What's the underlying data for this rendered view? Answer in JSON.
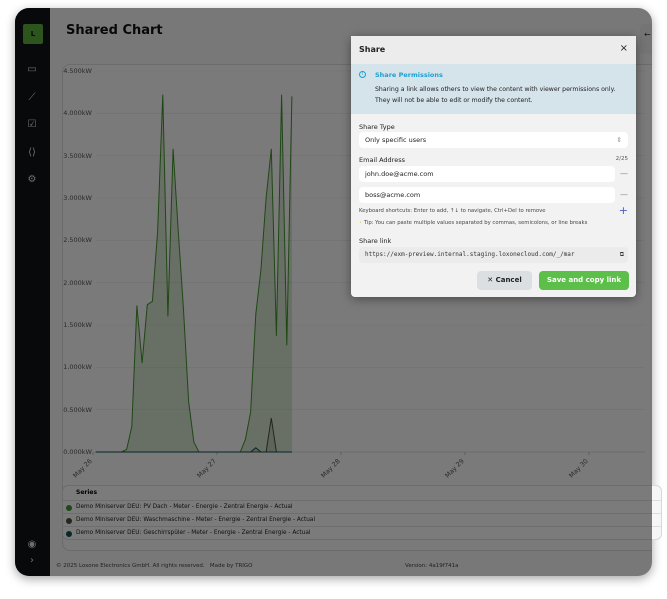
{
  "app": {
    "logo": "L",
    "title": "Shared Chart",
    "right_panel_icon": "arrow-left-icon",
    "right_panel_glyph": "←"
  },
  "sidebar": {
    "items": [
      {
        "icon": "dashboard-card-icon"
      },
      {
        "icon": "line-chart-icon"
      },
      {
        "icon": "checklist-icon"
      },
      {
        "icon": "code-file-icon"
      },
      {
        "icon": "settings-gear-icon"
      }
    ],
    "bottom": [
      {
        "icon": "user-circle-icon"
      },
      {
        "icon": "chevron-right-icon"
      }
    ]
  },
  "chart_data": {
    "type": "area",
    "ylim": [
      0,
      4.5
    ],
    "yticks": [
      "0.000kW",
      "0.500kW",
      "1.000kW",
      "1.500kW",
      "2.000kW",
      "2.500kW",
      "3.000kW",
      "3.500kW",
      "4.000kW",
      "4.500kW"
    ],
    "xticks": [
      "May 26",
      "May 27",
      "May 28",
      "May 29",
      "May 30"
    ],
    "grid": true,
    "x": [
      "May 26 00:30",
      "May 26 01:30",
      "May 26 02:30",
      "May 26 03:30",
      "May 26 04:30",
      "May 26 05:30",
      "May 26 06:30",
      "May 26 07:30",
      "May 26 08:30",
      "May 26 09:30",
      "May 26 10:30",
      "May 26 11:30",
      "May 26 12:30",
      "May 26 13:30",
      "May 26 14:30",
      "May 26 15:30",
      "May 26 16:30",
      "May 26 17:30",
      "May 26 18:30",
      "May 26 19:30",
      "May 26 20:30",
      "May 26 21:30",
      "May 26 22:30",
      "May 26 23:30",
      "May 27 00:30",
      "May 27 01:30",
      "May 27 02:30",
      "May 27 03:30",
      "May 27 04:30",
      "May 27 05:30",
      "May 27 06:30",
      "May 27 07:30",
      "May 27 08:30",
      "May 27 09:30",
      "May 27 10:30",
      "May 27 11:30",
      "May 27 12:30",
      "May 27 13:30",
      "May 27 14:30"
    ],
    "series": [
      {
        "name": "Demo Miniserver DEU: PV Dach - Meter - Energie - Zentral Energie - Actual",
        "color": "#3f8f2a",
        "values": [
          0,
          0,
          0,
          0,
          0,
          0,
          0.03,
          0.3,
          1.73,
          1.05,
          1.74,
          1.78,
          2.6,
          4.22,
          1.6,
          3.58,
          2.6,
          1.7,
          0.6,
          0.12,
          0,
          0,
          0,
          0,
          0,
          0,
          0,
          0,
          0,
          0.15,
          0.47,
          1.63,
          2.15,
          3.0,
          3.58,
          1.37,
          4.22,
          1.26,
          4.2
        ]
      },
      {
        "name": "Demo Miniserver DEU: Waschmaschine - Meter - Energie - Zentral Energie - Actual",
        "color": "#4a4a3c",
        "values": [
          0,
          0,
          0,
          0,
          0,
          0,
          0,
          0,
          0,
          0,
          0,
          0,
          0,
          0,
          0,
          0,
          0,
          0,
          0,
          0,
          0,
          0,
          0,
          0,
          0,
          0,
          0,
          0,
          0,
          0,
          0,
          0,
          0,
          0,
          0.4,
          0,
          0,
          0,
          0
        ]
      },
      {
        "name": "Demo Miniserver DEU: Geschirrspüler - Meter - Energie - Zentral Energie - Actual",
        "color": "#0f4f52",
        "values": [
          0,
          0,
          0,
          0,
          0,
          0,
          0,
          0,
          0,
          0,
          0,
          0,
          0,
          0,
          0,
          0,
          0,
          0,
          0,
          0,
          0,
          0,
          0,
          0,
          0,
          0,
          0,
          0,
          0,
          0,
          0,
          0.05,
          0,
          0,
          0,
          0,
          0,
          0,
          0
        ]
      }
    ]
  },
  "legend": {
    "header": "Series"
  },
  "footer": {
    "copyright": "© 2025 Loxone Electronics GmbH. All rights reserved.",
    "made_by": "Made by TRIGO",
    "version": "Version: 4a19f741a"
  },
  "modal": {
    "title": "Share",
    "close_glyph": "×",
    "info_title": "Share Permissions",
    "info_body": "Sharing a link allows others to view the content with viewer permissions only. They will not be able to edit or modify the content.",
    "share_type_label": "Share Type",
    "share_type_value": "Only specific users",
    "email_label": "Email Address",
    "email_count": "2/25",
    "emails": [
      "john.doe@acme.com",
      "boss@acme.com"
    ],
    "shortcuts": "Keyboard shortcuts: Enter to add, ↑↓ to navigate, Ctrl+Del to remove",
    "tip": "Tip: You can paste multiple values separated by commas, semicolons, or line breaks",
    "link_label": "Share link",
    "link_value": "https://exm-preview.internal.staging.loxonecloud.com/_/mar",
    "cancel": "Cancel",
    "save": "Save and copy link",
    "accent": "#5cbf4a"
  }
}
